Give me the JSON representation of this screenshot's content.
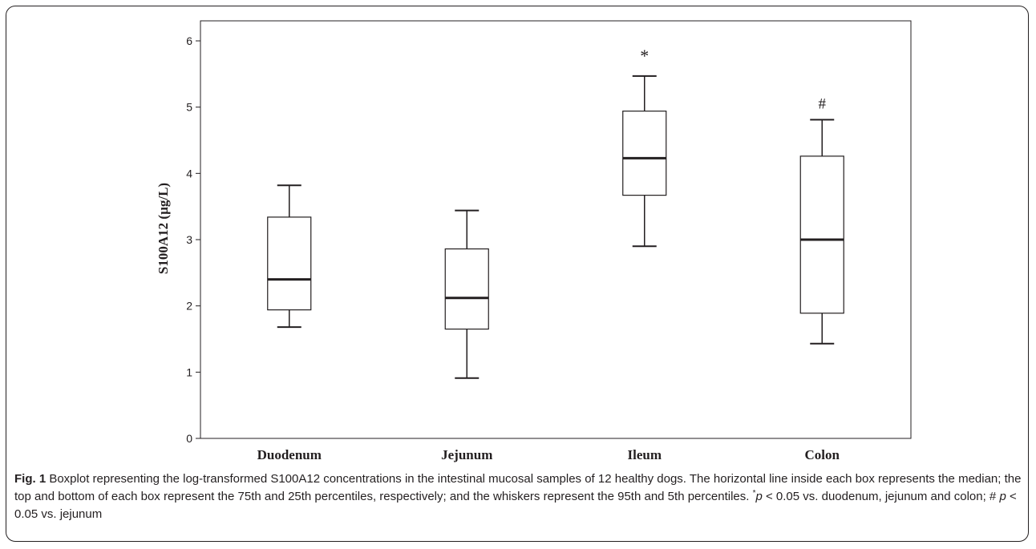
{
  "chart_data": {
    "type": "boxplot",
    "title": "",
    "xlabel": "",
    "ylabel": "S100A12 (µg/L)",
    "ylim": [
      0,
      6
    ],
    "yticks": [
      "0",
      "1",
      "2",
      "3",
      "4",
      "5",
      "6"
    ],
    "grid": false,
    "categories": [
      "Duodenum",
      "Jejunum",
      "Ileum",
      "Colon"
    ],
    "boxes": [
      {
        "category": "Duodenum",
        "whisker_low": 1.68,
        "q1": 1.94,
        "median": 2.4,
        "q3": 3.34,
        "whisker_high": 3.82,
        "annotation": ""
      },
      {
        "category": "Jejunum",
        "whisker_low": 0.91,
        "q1": 1.65,
        "median": 2.12,
        "q3": 2.86,
        "whisker_high": 3.44,
        "annotation": ""
      },
      {
        "category": "Ileum",
        "whisker_low": 2.9,
        "q1": 3.67,
        "median": 4.23,
        "q3": 4.94,
        "whisker_high": 5.47,
        "annotation": "*"
      },
      {
        "category": "Colon",
        "whisker_low": 1.43,
        "q1": 1.89,
        "median": 3.0,
        "q3": 4.26,
        "whisker_high": 4.81,
        "annotation": "#"
      }
    ]
  },
  "caption": {
    "label": "Fig. 1",
    "text_1": " Boxplot representing the log-transformed S100A12 concentrations in the intestinal mucosal samples of 12 healthy dogs. The horizontal line inside each box represents the median; the top and bottom of each box represent the 75th and 25th percentiles, respectively; and the whiskers represent the 95th and 5th percentiles. ",
    "sup_star": "*",
    "p1": "p",
    "text_2": " < 0.05 vs. duodenum, jejunum and colon; # ",
    "p2": "p",
    "text_3": " < 0.05 vs. jejunum"
  }
}
